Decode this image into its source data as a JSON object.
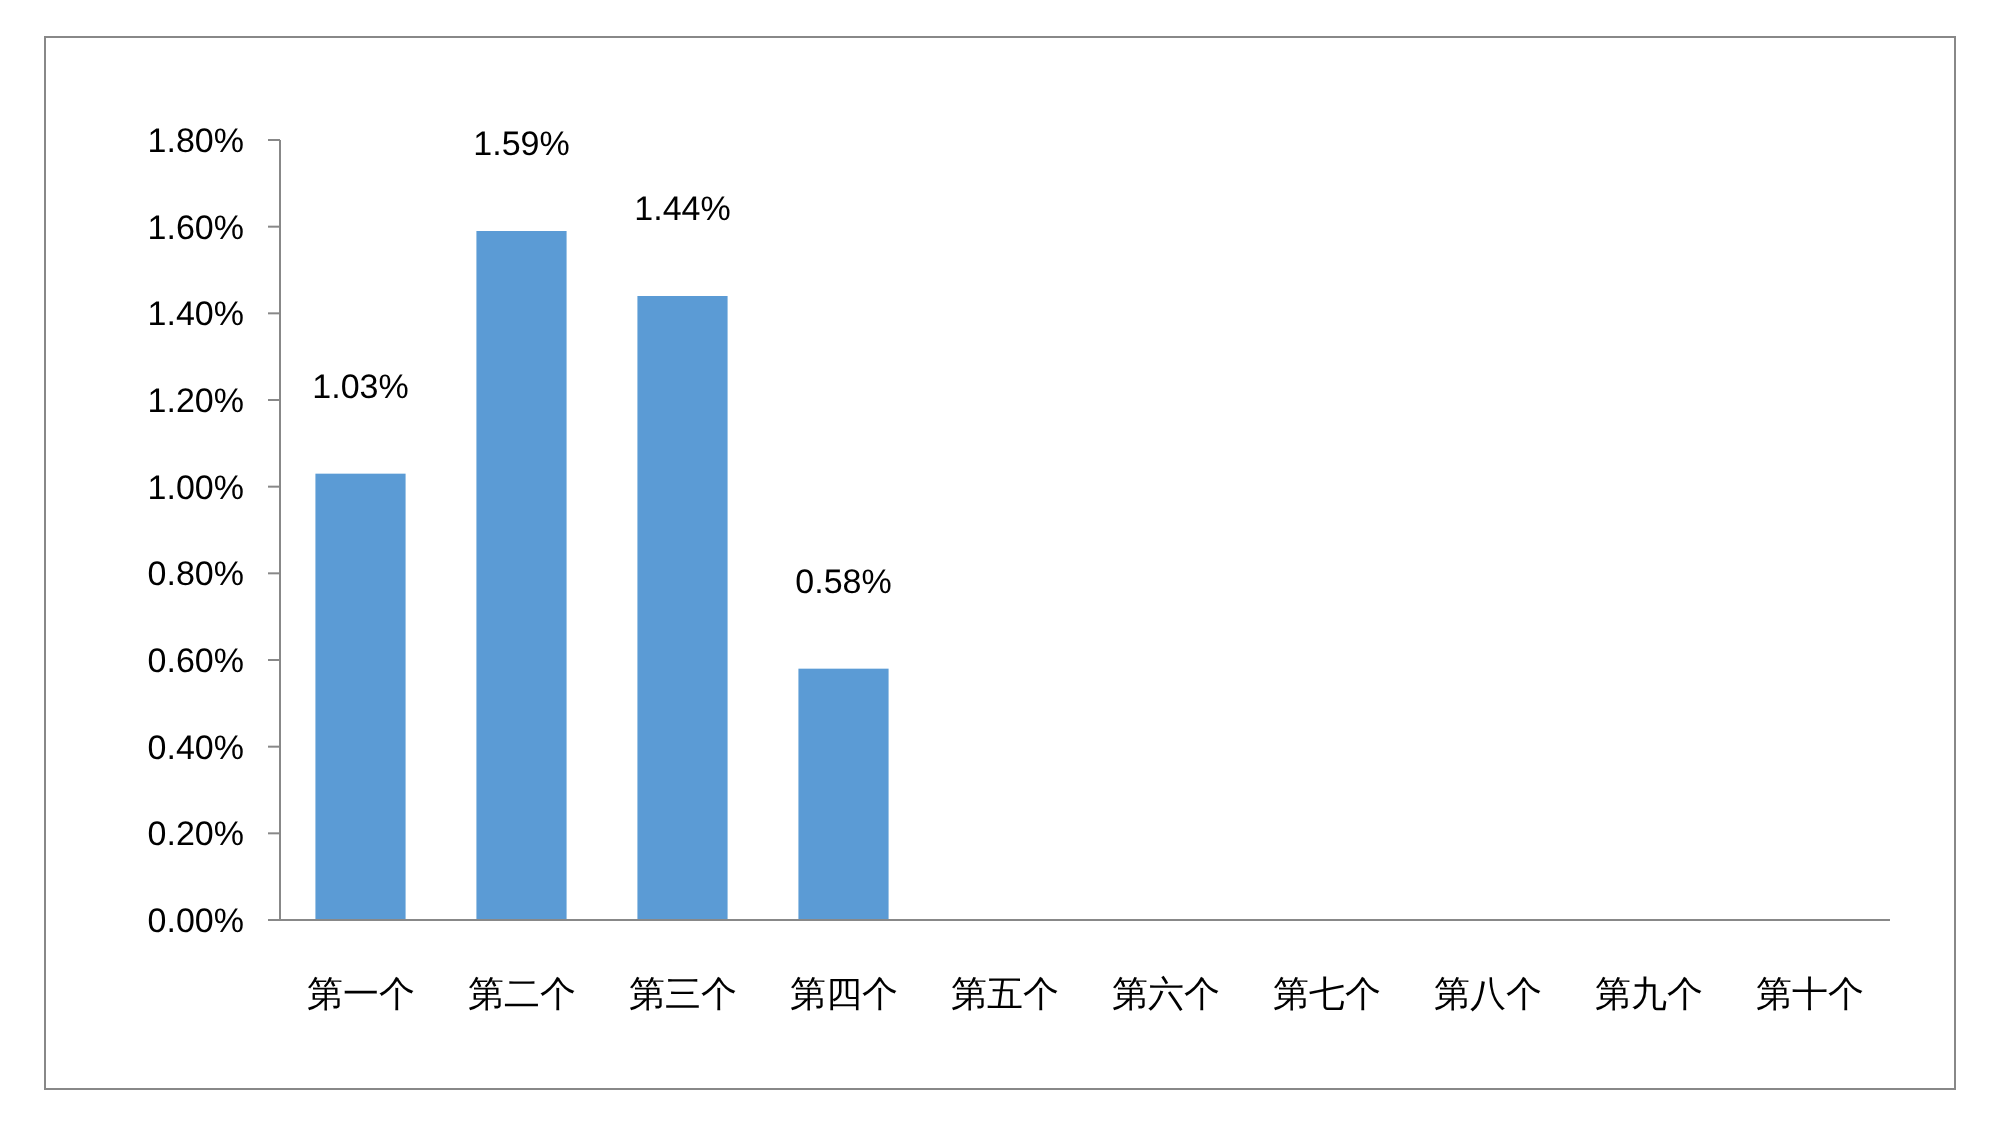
{
  "chart_data": {
    "type": "bar",
    "categories": [
      "第一个",
      "第二个",
      "第三个",
      "第四个",
      "第五个",
      "第六个",
      "第七个",
      "第八个",
      "第九个",
      "第十个"
    ],
    "values": [
      1.03,
      1.59,
      1.44,
      0.58,
      null,
      null,
      null,
      null,
      null,
      null
    ],
    "value_labels": [
      "1.03%",
      "1.59%",
      "1.44%",
      "0.58%",
      null,
      null,
      null,
      null,
      null,
      null
    ],
    "color": "#5b9bd5",
    "ylim": [
      0,
      1.8
    ],
    "yticks": [
      {
        "value": 0,
        "label": "0.00%"
      },
      {
        "value": 0.2,
        "label": "0.20%"
      },
      {
        "value": 0.4,
        "label": "0.40%"
      },
      {
        "value": 0.6,
        "label": "0.60%"
      },
      {
        "value": 0.8,
        "label": "0.80%"
      },
      {
        "value": 1.0,
        "label": "1.00%"
      },
      {
        "value": 1.2,
        "label": "1.20%"
      },
      {
        "value": 1.4,
        "label": "1.40%"
      },
      {
        "value": 1.6,
        "label": "1.60%"
      },
      {
        "value": 1.8,
        "label": "1.80%"
      }
    ]
  }
}
